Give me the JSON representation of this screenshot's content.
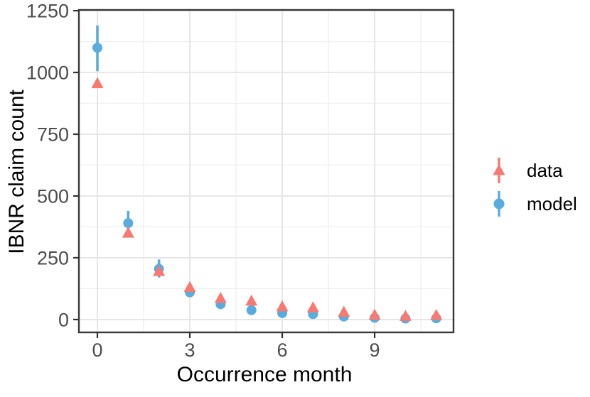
{
  "chart_data": {
    "type": "scatter",
    "subtype": "pointrange",
    "title": "",
    "xlabel": "Occurrence month",
    "ylabel": "IBNR claim count",
    "x": [
      0,
      1,
      2,
      3,
      4,
      5,
      6,
      7,
      8,
      9,
      10,
      11
    ],
    "series": [
      {
        "name": "data",
        "shape": "triangle",
        "color": "#F8796F",
        "values": [
          955,
          350,
          195,
          130,
          86,
          75,
          52,
          48,
          30,
          18,
          13,
          17
        ]
      },
      {
        "name": "model",
        "shape": "circle",
        "color": "#58ACE0",
        "values": [
          1100,
          390,
          205,
          110,
          62,
          38,
          26,
          22,
          12,
          7,
          4,
          5
        ],
        "lo": [
          1005,
          345,
          170,
          92,
          47,
          27,
          17,
          14,
          6,
          2,
          0,
          1
        ],
        "hi": [
          1190,
          440,
          243,
          131,
          78,
          50,
          36,
          31,
          19,
          13,
          9,
          10
        ]
      }
    ],
    "x_ticks": [
      0,
      3,
      6,
      9
    ],
    "x_minor_ticks": [
      1.5,
      4.5,
      7.5,
      10.5
    ],
    "y_ticks": [
      0,
      250,
      500,
      750,
      1000,
      1250
    ],
    "y_minor_ticks": [
      125,
      375,
      625,
      875,
      1125
    ],
    "xlim": [
      -0.6,
      11.56
    ],
    "ylim": [
      -52,
      1253
    ],
    "grid": true,
    "legend_position": "right",
    "legend_entries": [
      "data",
      "model"
    ],
    "colors": {
      "background": "#FFFFFF",
      "grid_major": "#E4E4E4",
      "grid_minor": "#F0F0F0",
      "panel_border": "#383838",
      "tick_mark": "#333333",
      "tick_text": "#4D4D4D",
      "axis_title_text": "#000000"
    }
  }
}
